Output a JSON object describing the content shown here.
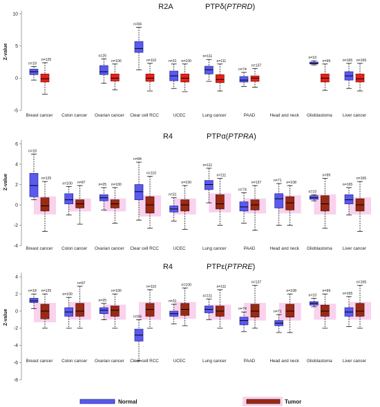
{
  "chart_data": [
    {
      "type": "box",
      "title": {
        "family": "R2A",
        "protein": "PTPδ(",
        "gene": "PTPRD",
        "suffix": ")"
      },
      "ylabel": "Z-value",
      "yticks": [
        10,
        5,
        0,
        -5
      ],
      "ylim": [
        -5,
        10.5
      ],
      "categories": [
        "Breast cancer",
        "Colon cancer",
        "Ovarian cancer",
        "Clear cell RCC",
        "UCEC",
        "Lung cancer",
        "PAAD",
        "Head and neck",
        "Glioblastoma",
        "Liver cancer"
      ],
      "shading_color": null,
      "series": [
        {
          "name": "Normal",
          "color": "#5a5af0",
          "border": "#23238f",
          "boxes": [
            {
              "min": -0.3,
              "q1": 0.55,
              "median": 1.0,
              "q3": 1.4,
              "max": 1.8,
              "n_label": "n=18"
            },
            null,
            {
              "min": -0.8,
              "q1": 0.55,
              "median": 1.0,
              "q3": 1.95,
              "max": 3.0,
              "n_label": "n=25"
            },
            {
              "min": 1.3,
              "q1": 4.0,
              "median": 4.6,
              "q3": 5.7,
              "max": 7.9,
              "n_label": "n=84"
            },
            {
              "min": -1.6,
              "q1": -0.4,
              "median": 0.35,
              "q3": 1.1,
              "max": 2.2,
              "n_label": "n=31"
            },
            {
              "min": -0.5,
              "q1": 0.65,
              "median": 1.3,
              "q3": 1.85,
              "max": 2.9,
              "n_label": "n=111"
            },
            {
              "min": -1.3,
              "q1": -0.6,
              "median": -0.3,
              "q3": 0.25,
              "max": 0.9,
              "n_label": "n=74"
            },
            null,
            {
              "min": 2.05,
              "q1": 2.2,
              "median": 2.3,
              "q3": 2.5,
              "max": 2.7,
              "n_label": "n=10"
            },
            {
              "min": -1.6,
              "q1": -0.3,
              "median": 0.35,
              "q3": 1.0,
              "max": 2.3,
              "n_label": "n=165"
            }
          ]
        },
        {
          "name": "Tumor",
          "color": "#e2231a",
          "border": "#8a0f0a",
          "boxes": [
            {
              "min": -2.5,
              "q1": -0.6,
              "median": -0.1,
              "q3": 0.65,
              "max": 2.4,
              "n_label": "n=125"
            },
            null,
            {
              "min": -1.8,
              "q1": -0.45,
              "median": 0.0,
              "q3": 0.65,
              "max": 2.2,
              "n_label": "n=100"
            },
            {
              "min": -2.0,
              "q1": -0.5,
              "median": 0.0,
              "q3": 0.65,
              "max": 2.3,
              "n_label": "n=110"
            },
            {
              "min": -2.1,
              "q1": -0.6,
              "median": 0.0,
              "q3": 0.65,
              "max": 2.2,
              "n_label": "n=100"
            },
            {
              "min": -2.0,
              "q1": -0.7,
              "median": -0.2,
              "q3": 0.55,
              "max": 2.2,
              "n_label": "n=111"
            },
            {
              "min": -1.4,
              "q1": -0.5,
              "median": 0.0,
              "q3": 0.35,
              "max": 1.5,
              "n_label": "n=137"
            },
            null,
            {
              "min": -1.9,
              "q1": -0.6,
              "median": 0.0,
              "q3": 0.65,
              "max": 2.2,
              "n_label": "n=99"
            },
            {
              "min": -2.0,
              "q1": -0.6,
              "median": -0.1,
              "q3": 0.65,
              "max": 2.3,
              "n_label": "n=165"
            }
          ]
        }
      ]
    },
    {
      "type": "box",
      "title": {
        "family": "R4",
        "protein": "PTPα(",
        "gene": "PTPRA",
        "suffix": ")"
      },
      "ylabel": "Z-value",
      "yticks": [
        6,
        4,
        2,
        0,
        -2,
        -4
      ],
      "ylim": [
        -4,
        6.4
      ],
      "categories": [
        "Breast cancer",
        "Colon cancer",
        "Ovarian cancer",
        "Clear cell RCC",
        "UCEC",
        "Lung cancer",
        "PAAD",
        "Head and neck",
        "Glioblastoma",
        "Liver cancer"
      ],
      "shading_color": "#f9d2ee",
      "series": [
        {
          "name": "Normal",
          "color": "#5a5af0",
          "border": "#23238f",
          "boxes": [
            {
              "min": 0.5,
              "q1": 0.8,
              "median": 1.9,
              "q3": 3.1,
              "max": 5.0,
              "n_label": "n=18"
            },
            {
              "min": -1.0,
              "q1": 0.1,
              "median": 0.5,
              "q3": 1.1,
              "max": 1.8,
              "n_label": "n=100"
            },
            {
              "min": -0.5,
              "q1": 0.4,
              "median": 0.7,
              "q3": 1.0,
              "max": 1.7,
              "n_label": "n=25"
            },
            {
              "min": -1.5,
              "q1": 0.5,
              "median": 1.3,
              "q3": 2.0,
              "max": 4.2,
              "n_label": "n=84"
            },
            {
              "min": -1.6,
              "q1": -0.7,
              "median": -0.4,
              "q3": -0.1,
              "max": 0.7,
              "n_label": "n=31"
            },
            {
              "min": 0.2,
              "q1": 1.5,
              "median": 2.0,
              "q3": 2.4,
              "max": 3.6,
              "n_label": "n=111"
            },
            {
              "min": -1.8,
              "q1": -0.6,
              "median": -0.2,
              "q3": 0.3,
              "max": 1.2,
              "n_label": "n=74"
            },
            {
              "min": -2.0,
              "q1": -0.3,
              "median": 0.6,
              "q3": 1.1,
              "max": 2.1,
              "n_label": "n=71"
            },
            {
              "min": 0.4,
              "q1": 0.55,
              "median": 0.7,
              "q3": 0.9,
              "max": 1.0,
              "n_label": "n=10"
            },
            {
              "min": -1.0,
              "q1": 0.1,
              "median": 0.5,
              "q3": 1.0,
              "max": 1.7,
              "n_label": "n=165"
            }
          ]
        },
        {
          "name": "Tumor",
          "color": "#9b2a14",
          "border": "#4d1207",
          "boxes": [
            {
              "min": -2.6,
              "q1": -0.6,
              "median": -0.1,
              "q3": 0.7,
              "max": 2.3,
              "n_label": "n=125"
            },
            {
              "min": -1.9,
              "q1": -0.3,
              "median": 0.1,
              "q3": 0.5,
              "max": 1.9,
              "n_label": "n=97"
            },
            {
              "min": -1.8,
              "q1": -0.3,
              "median": 0.1,
              "q3": 0.5,
              "max": 1.7,
              "n_label": "n=100"
            },
            {
              "min": -2.3,
              "q1": -0.8,
              "median": 0.0,
              "q3": 0.8,
              "max": 2.8,
              "n_label": "n=110"
            },
            {
              "min": -2.4,
              "q1": -0.6,
              "median": 0.0,
              "q3": 0.5,
              "max": 1.9,
              "n_label": "n=100"
            },
            {
              "min": -2.0,
              "q1": -0.4,
              "median": 0.1,
              "q3": 1.0,
              "max": 2.6,
              "n_label": "n=111"
            },
            {
              "min": -2.5,
              "q1": -0.5,
              "median": 0.0,
              "q3": 0.5,
              "max": 1.9,
              "n_label": "n=137"
            },
            {
              "min": -2.0,
              "q1": -0.5,
              "median": 0.2,
              "q3": 0.8,
              "max": 1.9,
              "n_label": "n=108"
            },
            {
              "min": -2.3,
              "q1": -0.6,
              "median": 0.1,
              "q3": 0.9,
              "max": 2.6,
              "n_label": "n=99"
            },
            {
              "min": -2.6,
              "q1": -0.6,
              "median": 0.0,
              "q3": 0.6,
              "max": 2.3,
              "n_label": "n=165"
            }
          ]
        }
      ]
    },
    {
      "type": "box",
      "title": {
        "family": "R4",
        "protein": "PTPε(",
        "gene": "PTPRE",
        "suffix": ")"
      },
      "ylabel": "Z-value",
      "yticks": [
        4,
        2,
        0,
        -2,
        -4,
        -6,
        -8
      ],
      "ylim": [
        -8,
        4.5
      ],
      "categories": [
        "Breast cancer",
        "Colon cancer",
        "Ovarian cancer",
        "Clear cell RCC",
        "UCEC",
        "Lung cancer",
        "PAAD",
        "Head and neck",
        "Glioblastoma",
        "Liver cancer"
      ],
      "shading_color": "#f9d2ee",
      "series": [
        {
          "name": "Normal",
          "color": "#5a5af0",
          "border": "#23238f",
          "boxes": [
            {
              "min": 0.3,
              "q1": 1.0,
              "median": 1.2,
              "q3": 1.5,
              "max": 2.0,
              "n_label": "n=18"
            },
            {
              "min": -2.0,
              "q1": -0.6,
              "median": -0.1,
              "q3": 0.4,
              "max": 1.6,
              "n_label": "n=100"
            },
            {
              "min": -1.0,
              "q1": -0.3,
              "median": 0.1,
              "q3": 0.4,
              "max": 0.9,
              "n_label": "n=25"
            },
            {
              "min": -5.8,
              "q1": -3.5,
              "median": -2.8,
              "q3": -2.1,
              "max": -1.0,
              "n_label": "n=84"
            },
            {
              "min": -1.5,
              "q1": -0.6,
              "median": -0.3,
              "q3": 0.0,
              "max": 0.8,
              "n_label": "n=31"
            },
            {
              "min": -1.0,
              "q1": -0.2,
              "median": 0.2,
              "q3": 0.6,
              "max": 1.4,
              "n_label": "n=111"
            },
            {
              "min": -2.4,
              "q1": -1.6,
              "median": -1.1,
              "q3": -0.7,
              "max": -0.1,
              "n_label": "n=74"
            },
            {
              "min": -2.5,
              "q1": -1.7,
              "median": -1.4,
              "q3": -1.1,
              "max": -0.4,
              "n_label": "n=71"
            },
            {
              "min": 0.5,
              "q1": 0.7,
              "median": 0.9,
              "q3": 1.1,
              "max": 1.5,
              "n_label": "n=10"
            },
            {
              "min": -1.8,
              "q1": -0.6,
              "median": -0.1,
              "q3": 0.4,
              "max": 1.7,
              "n_label": "n=165"
            }
          ]
        },
        {
          "name": "Tumor",
          "color": "#9b2a14",
          "border": "#4d1207",
          "boxes": [
            {
              "min": -2.0,
              "q1": -0.9,
              "median": 0.0,
              "q3": 0.8,
              "max": 2.0,
              "n_label": "n=125"
            },
            {
              "min": -2.0,
              "q1": -0.6,
              "median": 0.0,
              "q3": 0.9,
              "max": 2.9,
              "n_label": "n=97"
            },
            {
              "min": -2.0,
              "q1": -0.6,
              "median": 0.1,
              "q3": 0.6,
              "max": 2.0,
              "n_label": "n=100"
            },
            {
              "min": -2.0,
              "q1": -0.6,
              "median": 0.2,
              "q3": 0.9,
              "max": 2.5,
              "n_label": "n=110"
            },
            {
              "min": -1.7,
              "q1": -0.5,
              "median": 0.2,
              "q3": 0.9,
              "max": 2.7,
              "n_label": "n=100"
            },
            {
              "min": -2.0,
              "q1": -0.6,
              "median": 0.0,
              "q3": 0.6,
              "max": 2.5,
              "n_label": "n=111"
            },
            {
              "min": -2.0,
              "q1": -0.7,
              "median": 0.0,
              "q3": 0.8,
              "max": 3.0,
              "n_label": "n=137"
            },
            {
              "min": -2.5,
              "q1": -0.7,
              "median": 0.0,
              "q3": 0.8,
              "max": 2.0,
              "n_label": "n=108"
            },
            {
              "min": -2.0,
              "q1": -0.6,
              "median": 0.0,
              "q3": 0.7,
              "max": 2.0,
              "n_label": "n=99"
            },
            {
              "min": -2.0,
              "q1": -0.6,
              "median": 0.0,
              "q3": 0.9,
              "max": 3.0,
              "n_label": "n=165"
            }
          ]
        }
      ]
    }
  ],
  "legend": [
    {
      "label": "Normal",
      "color": "#5a5af0",
      "border": "#23238f"
    },
    {
      "label": "Tumor",
      "color": "#9b2a14",
      "border": "#4d1207",
      "background": "#f9d2ee"
    }
  ]
}
